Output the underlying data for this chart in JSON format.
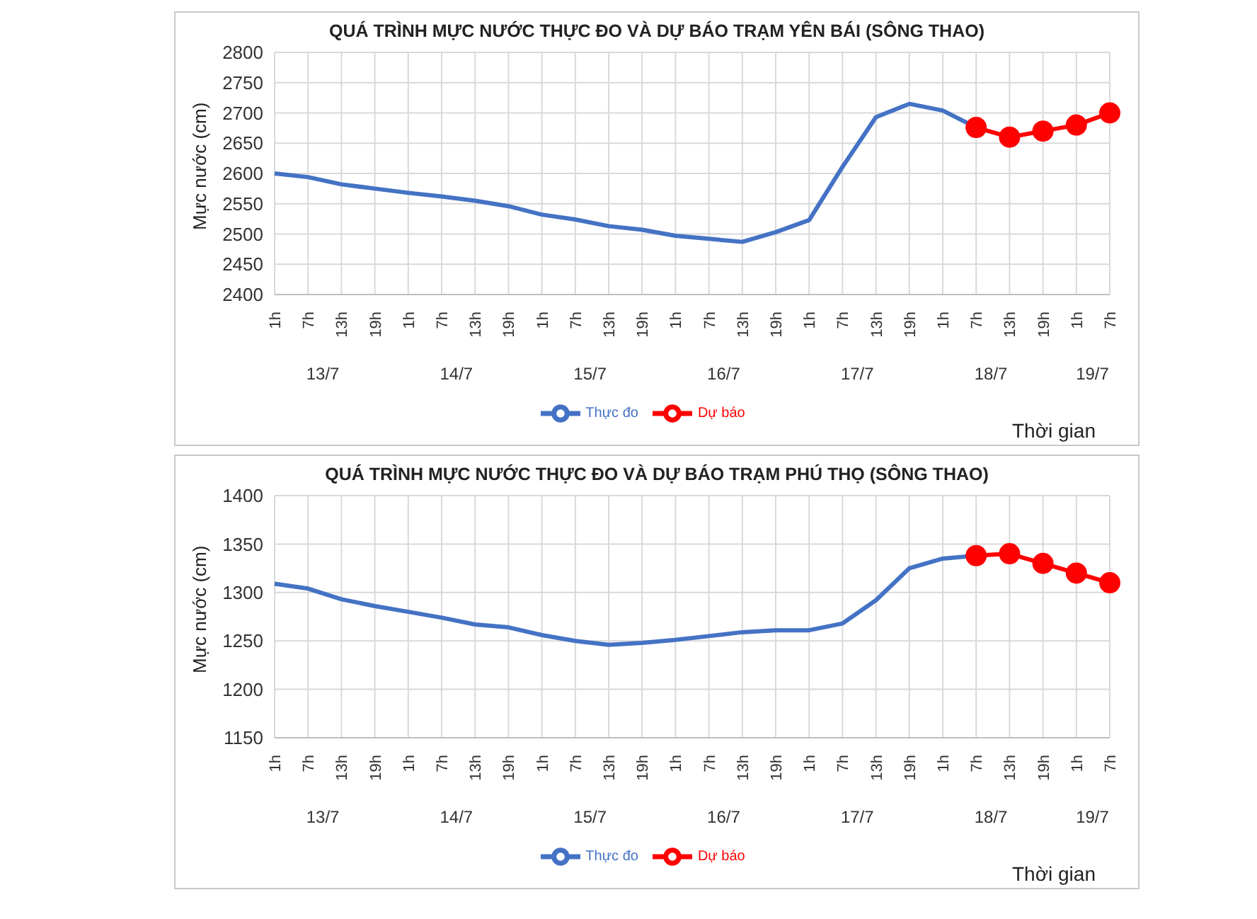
{
  "chart_data": [
    {
      "type": "line",
      "title": "QUÁ TRÌNH MỰC NƯỚC THỰC ĐO VÀ DỰ BÁO TRẠM YÊN BÁI (SÔNG THAO)",
      "ylabel": "Mực nước (cm)",
      "xlabel": "Thời gian",
      "categories": [
        "1h",
        "7h",
        "13h",
        "19h",
        "1h",
        "7h",
        "13h",
        "19h",
        "1h",
        "7h",
        "13h",
        "19h",
        "1h",
        "7h",
        "13h",
        "19h",
        "1h",
        "7h",
        "13h",
        "19h",
        "1h",
        "7h",
        "13h",
        "19h",
        "1h",
        "7h"
      ],
      "annotations": [
        "13/7",
        "14/7",
        "15/7",
        "16/7",
        "17/7",
        "18/7",
        "19/7"
      ],
      "series": [
        {
          "name": "Thực đo",
          "color": "#4472c4",
          "values": [
            2600,
            2594,
            2582,
            2575,
            2568,
            2562,
            2555,
            2546,
            2532,
            2524,
            2513,
            2507,
            2497,
            2492,
            2487,
            2503,
            2523,
            2611,
            2693,
            2715,
            2704,
            2676,
            null,
            null,
            null,
            null
          ]
        },
        {
          "name": "Dự báo",
          "color": "#ff0000",
          "marker": "circle",
          "values": [
            null,
            null,
            null,
            null,
            null,
            null,
            null,
            null,
            null,
            null,
            null,
            null,
            null,
            null,
            null,
            null,
            null,
            null,
            null,
            null,
            null,
            2676,
            2660,
            2670,
            2680,
            2700
          ]
        }
      ],
      "ylim": [
        2400,
        2800
      ],
      "yticks": [
        2400,
        2450,
        2500,
        2550,
        2600,
        2650,
        2700,
        2750,
        2800
      ],
      "grid": true,
      "legend": "bottom"
    },
    {
      "type": "line",
      "title": "QUÁ TRÌNH MỰC NƯỚC THỰC ĐO VÀ DỰ BÁO TRẠM PHÚ THỌ (SÔNG THAO)",
      "ylabel": "Mực nước (cm)",
      "xlabel": "Thời gian",
      "categories": [
        "1h",
        "7h",
        "13h",
        "19h",
        "1h",
        "7h",
        "13h",
        "19h",
        "1h",
        "7h",
        "13h",
        "19h",
        "1h",
        "7h",
        "13h",
        "19h",
        "1h",
        "7h",
        "13h",
        "19h",
        "1h",
        "7h",
        "13h",
        "19h",
        "1h",
        "7h"
      ],
      "annotations": [
        "13/7",
        "14/7",
        "15/7",
        "16/7",
        "17/7",
        "18/7",
        "19/7"
      ],
      "series": [
        {
          "name": "Thực đo",
          "color": "#4472c4",
          "values": [
            1309,
            1304,
            1293,
            1286,
            1280,
            1274,
            1267,
            1264,
            1256,
            1250,
            1246,
            1248,
            1251,
            1255,
            1259,
            1261,
            1261,
            1268,
            1292,
            1325,
            1335,
            1338,
            null,
            null,
            null,
            null
          ]
        },
        {
          "name": "Dự báo",
          "color": "#ff0000",
          "marker": "circle",
          "values": [
            null,
            null,
            null,
            null,
            null,
            null,
            null,
            null,
            null,
            null,
            null,
            null,
            null,
            null,
            null,
            null,
            null,
            null,
            null,
            null,
            null,
            1338,
            1340,
            1330,
            1320,
            1310
          ]
        }
      ],
      "ylim": [
        1150,
        1400
      ],
      "yticks": [
        1150,
        1200,
        1250,
        1300,
        1350,
        1400
      ],
      "grid": true,
      "legend": "bottom"
    }
  ]
}
